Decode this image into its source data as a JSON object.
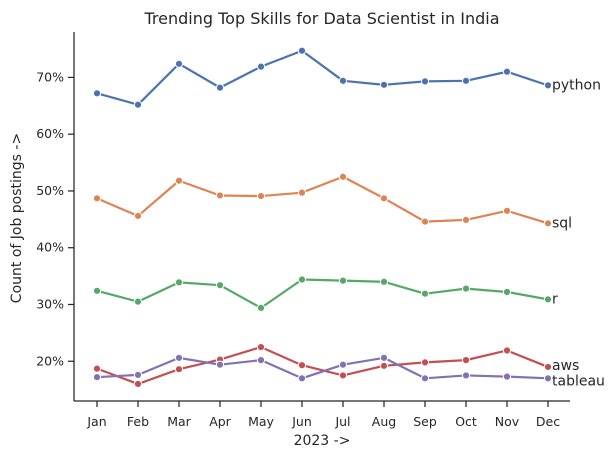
{
  "chart_data": {
    "type": "line",
    "title": "Trending Top Skills for Data Scientist in India",
    "xlabel": "2023 ->",
    "ylabel": "Count of Job postings ->",
    "categories": [
      "Jan",
      "Feb",
      "Mar",
      "Apr",
      "May",
      "Jun",
      "Jul",
      "Aug",
      "Sep",
      "Oct",
      "Nov",
      "Dec"
    ],
    "y_ticks": [
      "20%",
      "30%",
      "40%",
      "50%",
      "60%",
      "70%"
    ],
    "y_tick_values": [
      20,
      30,
      40,
      50,
      60,
      70
    ],
    "ylim": [
      13,
      78
    ],
    "grid": false,
    "legend": "none",
    "series": [
      {
        "name": "python",
        "color": "#4c72b0",
        "values": [
          67.2,
          65.2,
          72.4,
          68.2,
          71.9,
          74.7,
          69.4,
          68.7,
          69.3,
          69.4,
          71.0,
          68.6
        ]
      },
      {
        "name": "sql",
        "color": "#dd8452",
        "values": [
          48.7,
          45.6,
          51.8,
          49.2,
          49.1,
          49.7,
          52.5,
          48.7,
          44.6,
          44.9,
          46.5,
          44.3
        ]
      },
      {
        "name": "r",
        "color": "#55a868",
        "values": [
          32.4,
          30.5,
          33.9,
          33.4,
          29.4,
          34.4,
          34.2,
          34.0,
          31.9,
          32.8,
          32.2,
          30.9
        ]
      },
      {
        "name": "aws",
        "color": "#c44e52",
        "values": [
          18.7,
          16.0,
          18.6,
          20.3,
          22.5,
          19.3,
          17.5,
          19.2,
          19.8,
          20.2,
          21.9,
          19.0
        ]
      },
      {
        "name": "tableau",
        "color": "#8172b3",
        "values": [
          17.2,
          17.6,
          20.6,
          19.4,
          20.2,
          17.0,
          19.4,
          20.6,
          17.0,
          17.5,
          17.3,
          17.0
        ]
      }
    ]
  }
}
